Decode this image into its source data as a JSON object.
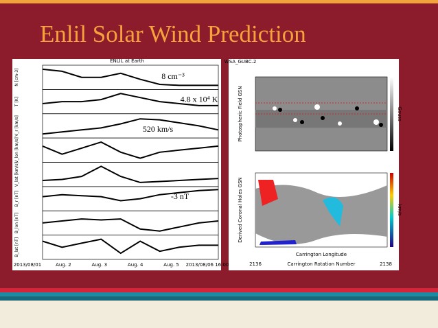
{
  "title": "Enlil Solar Wind Prediction",
  "left_plot": {
    "heading": "ENLIL at Earth",
    "panels": [
      {
        "ylabel": "N [cm-3]",
        "annotation": "8 cm⁻³"
      },
      {
        "ylabel": "T [K]",
        "annotation": "4.8 x 10⁴ K"
      },
      {
        "ylabel": "V_r [km/s]",
        "annotation": "520 km/s"
      },
      {
        "ylabel": "V_lon [km/s]"
      },
      {
        "ylabel": "V_lat [km/s]"
      },
      {
        "ylabel": "B_r [nT]",
        "annotation": "-3 nT"
      },
      {
        "ylabel": "B_lon [nT]"
      },
      {
        "ylabel": "B_lat [nT]"
      }
    ],
    "xlabels": [
      "2013/08/01",
      "Aug. 2",
      "Aug. 3",
      "Aug. 4",
      "Aug. 5",
      "2013/08/06 16:00"
    ]
  },
  "right_plot": {
    "label": "WSA_GUBC.2",
    "top_ylabel": "Photospheric Field GSN",
    "top_colorbar_label": "Gauss",
    "bottom_ylabel": "Derived Coronal Holes GSN",
    "bottom_colorbar_label": "km/s",
    "xlabel": "Carrington Longitude",
    "footer_left": "2136",
    "footer_center": "Carrington Rotation Number",
    "footer_right": "2138"
  }
}
